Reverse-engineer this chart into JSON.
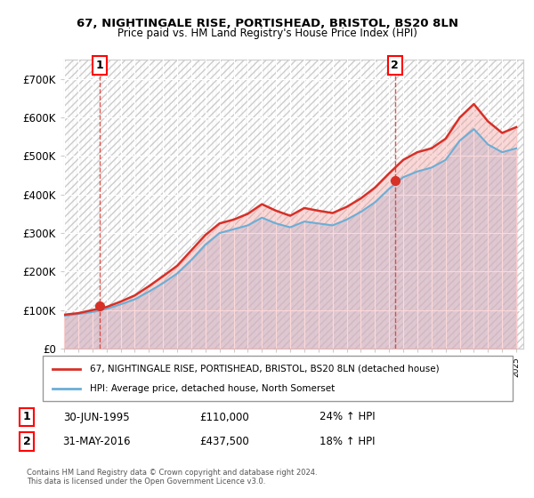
{
  "title1": "67, NIGHTINGALE RISE, PORTISHEAD, BRISTOL, BS20 8LN",
  "title2": "Price paid vs. HM Land Registry's House Price Index (HPI)",
  "legend_line1": "67, NIGHTINGALE RISE, PORTISHEAD, BRISTOL, BS20 8LN (detached house)",
  "legend_line2": "HPI: Average price, detached house, North Somerset",
  "annotation1_label": "1",
  "annotation1_date": "30-JUN-1995",
  "annotation1_price": "£110,000",
  "annotation1_hpi": "24% ↑ HPI",
  "annotation2_label": "2",
  "annotation2_date": "31-MAY-2016",
  "annotation2_price": "£437,500",
  "annotation2_hpi": "18% ↑ HPI",
  "footer": "Contains HM Land Registry data © Crown copyright and database right 2024.\nThis data is licensed under the Open Government Licence v3.0.",
  "sale1_year": 1995.5,
  "sale1_value": 110000,
  "sale2_year": 2016.42,
  "sale2_value": 437500,
  "hpi_color": "#a8c8e8",
  "hpi_line_color": "#6baed6",
  "price_color": "#d73027",
  "fill_color": "#f7c6c6",
  "background_hatch_color": "#e8e8e8",
  "ylim_max": 750000,
  "xmin": 1993,
  "xmax": 2025.5
}
